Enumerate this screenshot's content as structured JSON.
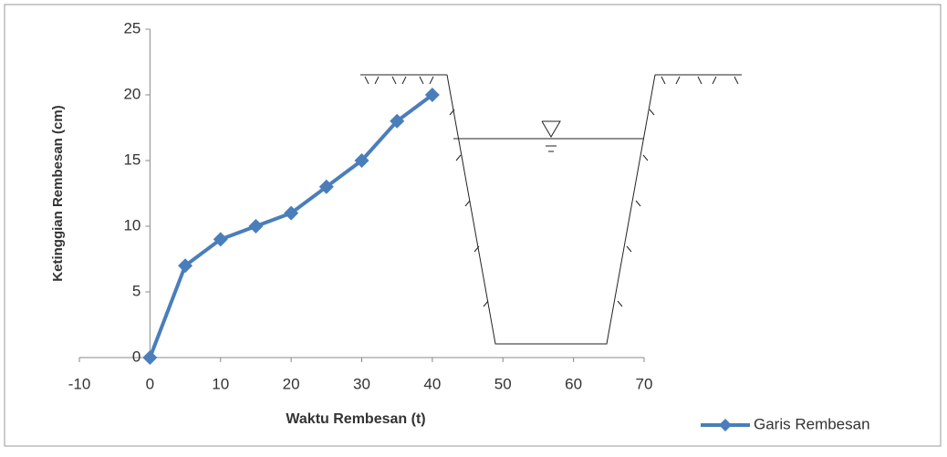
{
  "chart_data": {
    "type": "line",
    "x_label": "Waktu Rembesan (t)",
    "y_label": "Ketinggian Rembesan (cm)",
    "x": [
      0,
      5,
      10,
      15,
      20,
      25,
      30,
      35,
      40
    ],
    "series": [
      {
        "name": "Garis Rembesan",
        "color": "#4a7ebb",
        "values": [
          0,
          7,
          9,
          10,
          11,
          13,
          15,
          18,
          20
        ]
      }
    ],
    "xlim": [
      -10,
      70
    ],
    "xticks": [
      -10,
      0,
      10,
      20,
      30,
      40,
      50,
      60,
      70
    ],
    "ylim": [
      0,
      25
    ],
    "yticks": [
      0,
      5,
      10,
      15,
      20,
      25
    ],
    "grid": false,
    "legend": "bottom-right"
  }
}
